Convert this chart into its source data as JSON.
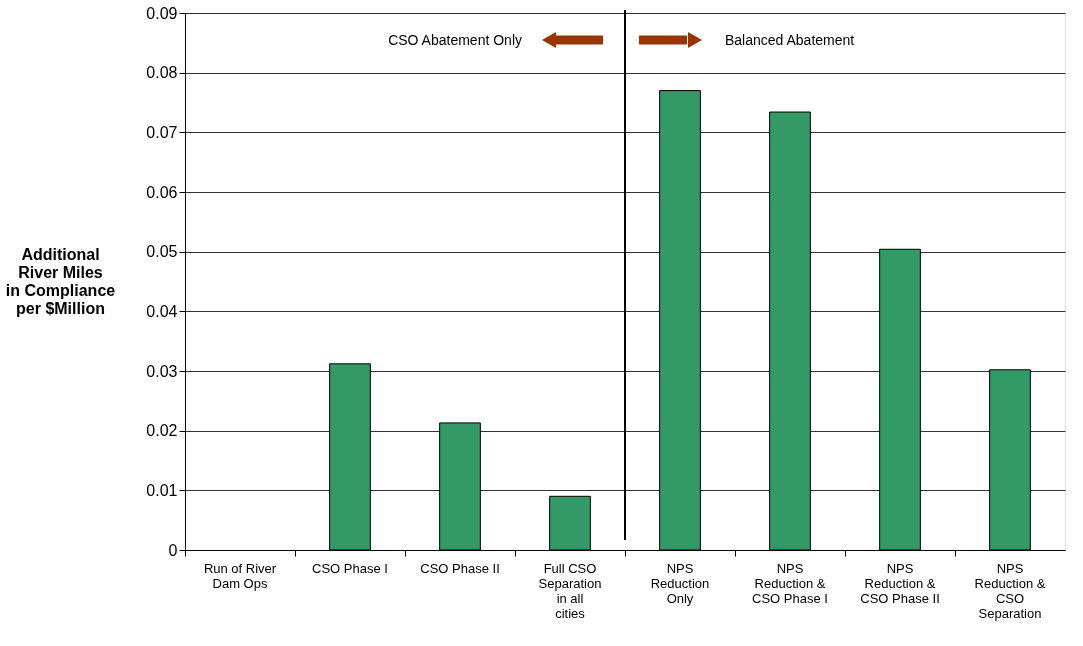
{
  "chart_data": {
    "type": "bar",
    "ylabel": "Additional River Miles in Compliance per $Million",
    "categories": [
      "Run of River Dam Ops",
      "CSO Phase I",
      "CSO Phase II",
      "Full CSO Separation in all cities",
      "NPS Reduction Only",
      "NPS Reduction & CSO Phase I",
      "NPS Reduction & CSO Phase II",
      "NPS Reduction & CSO Separation"
    ],
    "values": [
      null,
      0.0312,
      0.0213,
      0.009,
      0.077,
      0.0734,
      0.0504,
      0.0302
    ],
    "color": "#339966",
    "ylim": [
      0,
      0.09
    ],
    "yticks": [
      {
        "value": 0,
        "label": "0"
      },
      0.01,
      0.02,
      0.03,
      0.04,
      0.05,
      0.06,
      0.07,
      0.08,
      0.09
    ],
    "grid": "y",
    "ref_lines": [
      {
        "axis": "x",
        "value": "NPS Reduction Only",
        "color": "#000000"
      }
    ],
    "annotations": [
      "CSO Abatement Only",
      "Balanced Abatement"
    ]
  }
}
